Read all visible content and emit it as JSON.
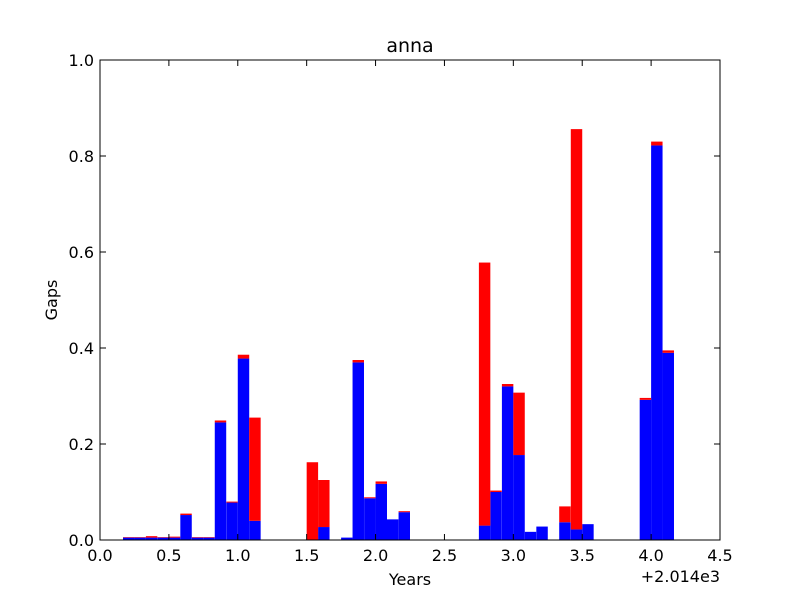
{
  "chart_data": {
    "type": "bar",
    "stacked": true,
    "title": "anna",
    "xlabel": "Years",
    "ylabel": "Gaps",
    "offset_label": "+2.014e3",
    "xlim": [
      0.0,
      4.5
    ],
    "ylim": [
      0.0,
      1.0
    ],
    "bar_width": 0.083,
    "xticks": [
      "0.0",
      "0.5",
      "1.0",
      "1.5",
      "2.0",
      "2.5",
      "3.0",
      "3.5",
      "4.0",
      "4.5"
    ],
    "yticks": [
      "0.0",
      "0.2",
      "0.4",
      "0.6",
      "0.8",
      "1.0"
    ],
    "grid": false,
    "legend": "none",
    "colors": {
      "blue": "#0000ff",
      "red": "#ff0000"
    },
    "series": [
      {
        "color": "blue",
        "x": [
          0.167,
          0.25,
          0.333,
          0.417,
          0.5,
          0.583,
          0.667,
          0.75,
          0.833,
          0.917,
          1.0,
          1.083,
          1.5,
          1.583,
          1.75,
          1.833,
          1.917,
          2.0,
          2.083,
          2.167,
          2.75,
          2.833,
          2.917,
          3.0,
          3.083,
          3.167,
          3.333,
          3.417,
          3.5,
          3.917,
          4.0,
          4.083
        ],
        "values": [
          0.005,
          0.005,
          0.005,
          0.005,
          0.005,
          0.052,
          0.005,
          0.005,
          0.245,
          0.078,
          0.378,
          0.04,
          0.0,
          0.027,
          0.005,
          0.37,
          0.087,
          0.117,
          0.043,
          0.058,
          0.03,
          0.1,
          0.32,
          0.177,
          0.017,
          0.028,
          0.037,
          0.022,
          0.033,
          0.292,
          0.822,
          0.39
        ]
      },
      {
        "color": "red",
        "x": [
          0.167,
          0.25,
          0.333,
          0.417,
          0.5,
          0.583,
          0.667,
          0.75,
          0.833,
          0.917,
          1.0,
          1.083,
          1.5,
          1.583,
          1.75,
          1.833,
          1.917,
          2.0,
          2.083,
          2.167,
          2.75,
          2.833,
          2.917,
          3.0,
          3.083,
          3.167,
          3.333,
          3.417,
          3.5,
          3.917,
          4.0,
          4.083
        ],
        "values": [
          0.001,
          0.001,
          0.003,
          0.001,
          0.002,
          0.003,
          0.001,
          0.001,
          0.004,
          0.002,
          0.008,
          0.215,
          0.162,
          0.098,
          0.0,
          0.005,
          0.002,
          0.005,
          0.0,
          0.002,
          0.548,
          0.003,
          0.005,
          0.13,
          0.0,
          0.0,
          0.033,
          0.834,
          0.0,
          0.004,
          0.008,
          0.005
        ]
      }
    ]
  }
}
